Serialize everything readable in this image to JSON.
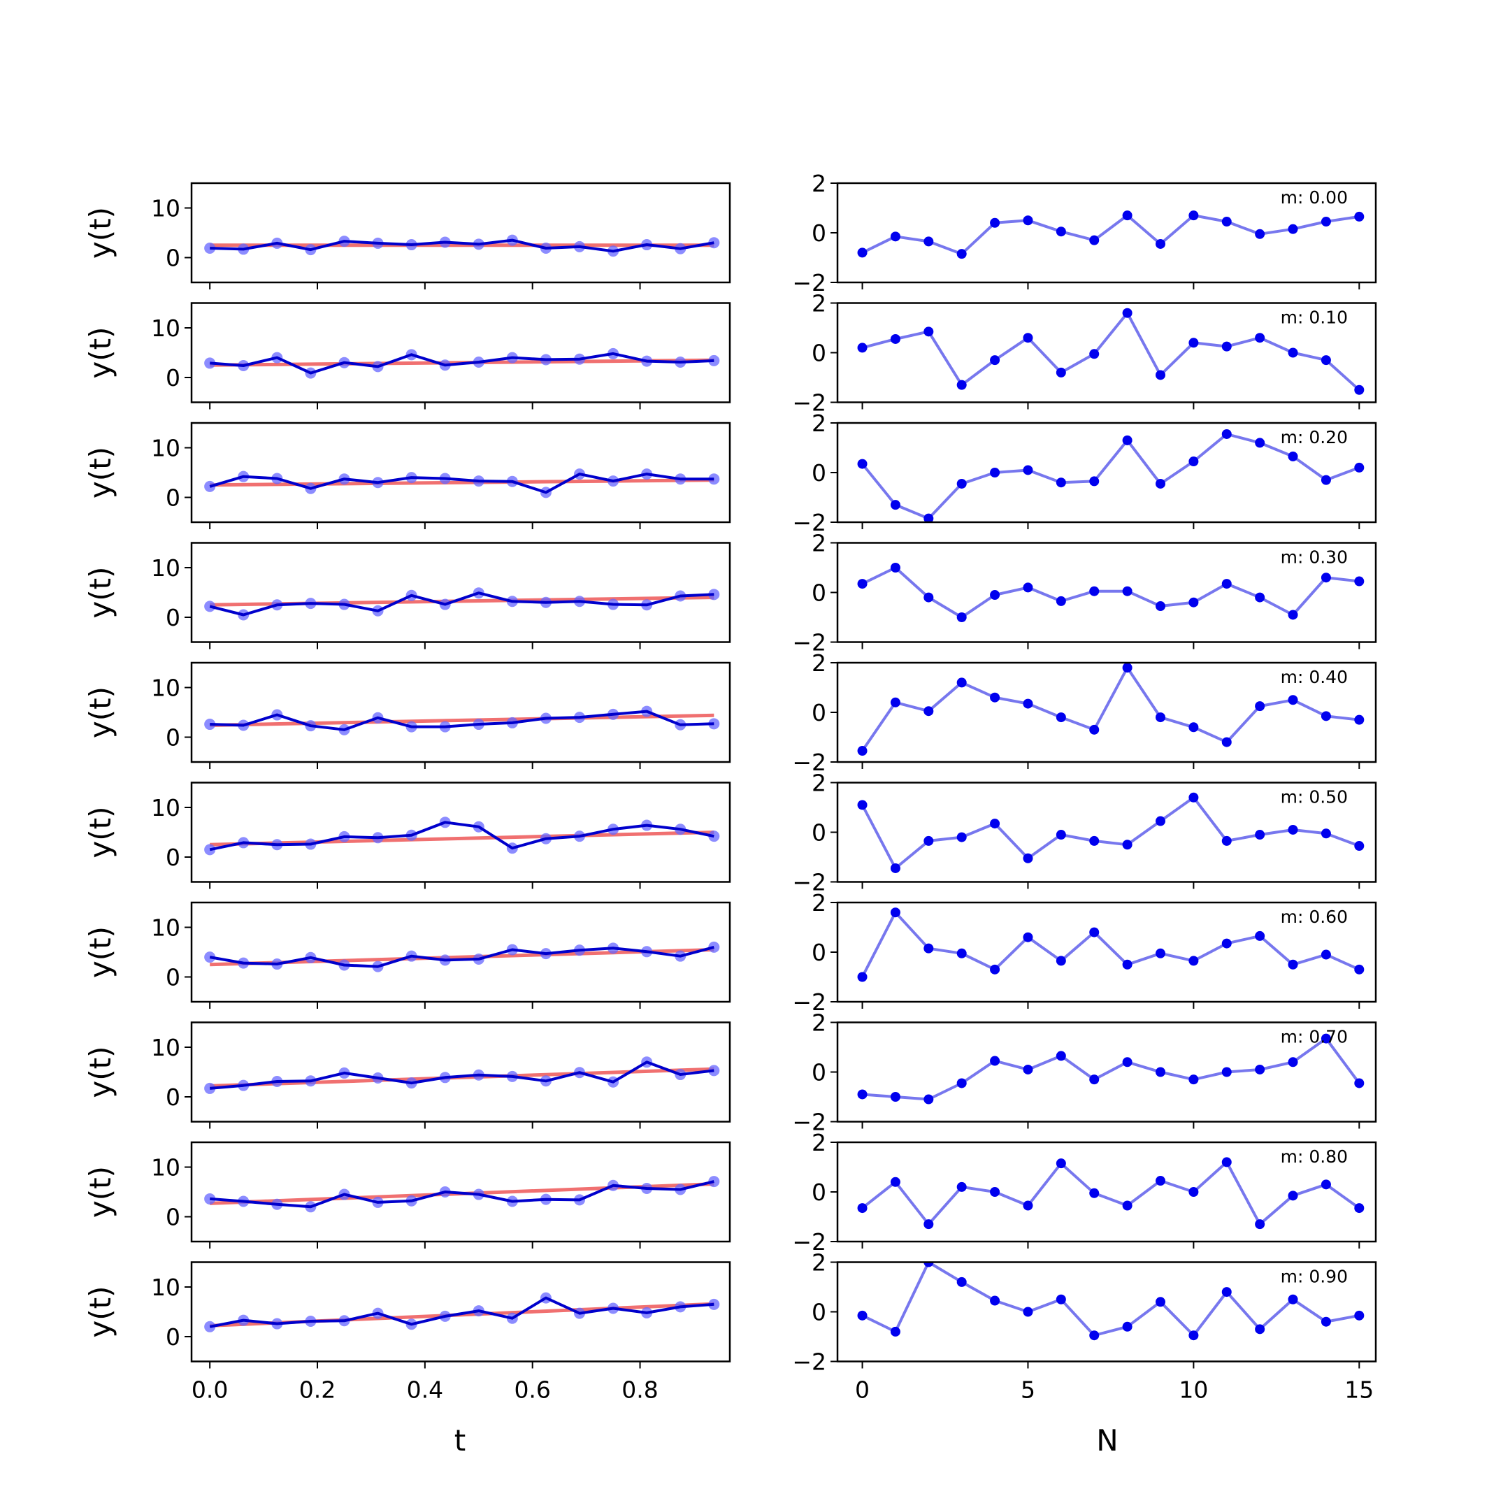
{
  "chart_data": {
    "type": "line",
    "left_column": {
      "xlabel": "t",
      "ylabel": "y(t)",
      "xlim": [
        -0.034,
        0.967
      ],
      "ylim": [
        -5,
        15
      ],
      "xticks": [
        "0.0",
        "0.2",
        "0.4",
        "0.6",
        "0.8"
      ],
      "yticks": [
        "0",
        "10"
      ],
      "x": [
        0.0,
        0.0625,
        0.125,
        0.1875,
        0.25,
        0.3125,
        0.375,
        0.4375,
        0.5,
        0.5625,
        0.625,
        0.6875,
        0.75,
        0.8125,
        0.875,
        0.9375
      ],
      "colors": {
        "data_line": "#0000cc",
        "data_points": "#6666ff",
        "fit_line": "#f07070"
      }
    },
    "right_column": {
      "xlabel": "N",
      "ylabel": "",
      "xlim": [
        -0.75,
        15.5
      ],
      "ylim": [
        -2,
        2
      ],
      "xticks": [
        "0",
        "5",
        "10",
        "15"
      ],
      "yticks": [
        "−2",
        "0",
        "2"
      ],
      "x": [
        0,
        1,
        2,
        3,
        4,
        5,
        6,
        7,
        8,
        9,
        10,
        11,
        12,
        13,
        14,
        15
      ],
      "colors": {
        "line": "#7777ee",
        "points": "#0000ee"
      }
    },
    "rows": [
      {
        "m_label": "m: 0.00",
        "m": 0.0,
        "y": [
          1.9,
          1.7,
          2.9,
          1.6,
          3.3,
          2.9,
          2.6,
          3.1,
          2.7,
          3.5,
          1.9,
          2.2,
          1.3,
          2.6,
          1.8,
          3.0
        ],
        "fit": [
          2.5,
          2.5
        ],
        "residuals": [
          -0.8,
          -0.15,
          -0.35,
          -0.85,
          0.4,
          0.5,
          0.05,
          -0.3,
          0.7,
          -0.45,
          0.7,
          0.45,
          -0.05,
          0.15,
          0.45,
          0.65
        ]
      },
      {
        "m_label": "m: 0.10",
        "m": 0.1,
        "y": [
          2.9,
          2.4,
          4.0,
          0.9,
          3.0,
          2.2,
          4.6,
          2.5,
          3.1,
          4.0,
          3.6,
          3.7,
          4.8,
          3.3,
          3.1,
          3.4
        ],
        "fit": [
          2.5,
          3.5
        ],
        "residuals": [
          0.2,
          0.55,
          0.85,
          -1.3,
          -0.3,
          0.6,
          -0.8,
          -0.05,
          1.6,
          -0.9,
          0.4,
          0.25,
          0.6,
          0.0,
          -0.3,
          -1.5
        ]
      },
      {
        "m_label": "m: 0.20",
        "m": 0.2,
        "y": [
          2.2,
          4.2,
          3.8,
          1.8,
          3.7,
          3.0,
          4.0,
          3.8,
          3.3,
          3.2,
          1.0,
          4.7,
          3.3,
          4.7,
          3.7,
          3.7
        ],
        "fit": [
          2.5,
          3.5
        ],
        "residuals": [
          0.35,
          -1.3,
          -1.85,
          -0.45,
          0.0,
          0.1,
          -0.4,
          -0.35,
          1.3,
          -0.45,
          0.45,
          1.55,
          1.2,
          0.65,
          -0.3,
          0.2
        ]
      },
      {
        "m_label": "m: 0.30",
        "m": 0.3,
        "y": [
          2.2,
          0.5,
          2.5,
          2.8,
          2.6,
          1.3,
          4.4,
          2.6,
          4.9,
          3.2,
          3.0,
          3.2,
          2.6,
          2.5,
          4.3,
          4.6
        ],
        "fit": [
          2.5,
          4.0
        ],
        "residuals": [
          0.35,
          1.0,
          -0.2,
          -1.0,
          -0.1,
          0.2,
          -0.35,
          0.05,
          0.05,
          -0.55,
          -0.4,
          0.35,
          -0.2,
          -0.9,
          0.6,
          0.45
        ]
      },
      {
        "m_label": "m: 0.40",
        "m": 0.4,
        "y": [
          2.6,
          2.4,
          4.5,
          2.3,
          1.5,
          3.9,
          2.1,
          2.1,
          2.6,
          2.9,
          3.8,
          4.0,
          4.6,
          5.2,
          2.5,
          2.7
        ],
        "fit": [
          2.4,
          4.4
        ],
        "residuals": [
          -1.55,
          0.4,
          0.05,
          1.2,
          0.6,
          0.35,
          -0.2,
          -0.7,
          1.8,
          -0.2,
          -0.6,
          -1.2,
          0.25,
          0.5,
          -0.15,
          -0.3
        ]
      },
      {
        "m_label": "m: 0.50",
        "m": 0.5,
        "y": [
          1.5,
          2.9,
          2.5,
          2.6,
          4.1,
          3.9,
          4.4,
          7.0,
          6.1,
          1.8,
          3.7,
          4.2,
          5.6,
          6.4,
          5.6,
          4.2
        ],
        "fit": [
          2.5,
          5.0
        ],
        "residuals": [
          1.1,
          -1.45,
          -0.35,
          -0.2,
          0.35,
          -1.05,
          -0.1,
          -0.35,
          -0.5,
          0.45,
          1.4,
          -0.35,
          -0.1,
          0.1,
          -0.05,
          -0.55
        ]
      },
      {
        "m_label": "m: 0.60",
        "m": 0.6,
        "y": [
          4.0,
          2.8,
          2.6,
          3.9,
          2.4,
          2.1,
          4.2,
          3.4,
          3.6,
          5.5,
          4.7,
          5.4,
          5.8,
          5.1,
          4.2,
          6.0
        ],
        "fit": [
          2.5,
          5.5
        ],
        "residuals": [
          -1.0,
          1.6,
          0.15,
          -0.05,
          -0.7,
          0.6,
          -0.35,
          0.8,
          -0.5,
          -0.05,
          -0.35,
          0.35,
          0.65,
          -0.5,
          -0.1,
          -0.7
        ]
      },
      {
        "m_label": "m: 0.70",
        "m": 0.7,
        "y": [
          1.7,
          2.3,
          3.1,
          3.2,
          4.8,
          3.8,
          2.8,
          3.9,
          4.4,
          4.1,
          3.2,
          4.9,
          3.0,
          7.0,
          4.5,
          5.3
        ],
        "fit": [
          2.2,
          5.6
        ],
        "residuals": [
          -0.9,
          -1.0,
          -1.1,
          -0.45,
          0.45,
          0.1,
          0.65,
          -0.3,
          0.4,
          0.0,
          -0.3,
          0.0,
          0.1,
          0.4,
          1.35,
          -0.45
        ]
      },
      {
        "m_label": "m: 0.80",
        "m": 0.8,
        "y": [
          3.6,
          3.1,
          2.5,
          2.0,
          4.5,
          2.9,
          3.2,
          5.0,
          4.5,
          3.1,
          3.5,
          3.4,
          6.3,
          5.7,
          5.5,
          7.1
        ],
        "fit": [
          2.7,
          6.6
        ],
        "residuals": [
          -0.65,
          0.4,
          -1.3,
          0.2,
          0.0,
          -0.55,
          1.15,
          -0.05,
          -0.55,
          0.45,
          0.0,
          1.2,
          -1.3,
          -0.15,
          0.3,
          -0.65
        ]
      },
      {
        "m_label": "m: 0.90",
        "m": 0.9,
        "y": [
          2.0,
          3.3,
          2.6,
          3.1,
          3.2,
          4.7,
          2.5,
          4.1,
          5.2,
          3.7,
          7.8,
          4.7,
          5.7,
          4.8,
          6.0,
          6.5
        ],
        "fit": [
          2.2,
          6.6
        ],
        "residuals": [
          -0.15,
          -0.8,
          2.0,
          1.2,
          0.45,
          0.0,
          0.5,
          -0.95,
          -0.6,
          0.4,
          -0.95,
          0.8,
          -0.7,
          0.5,
          -0.4,
          -0.15
        ]
      }
    ]
  }
}
